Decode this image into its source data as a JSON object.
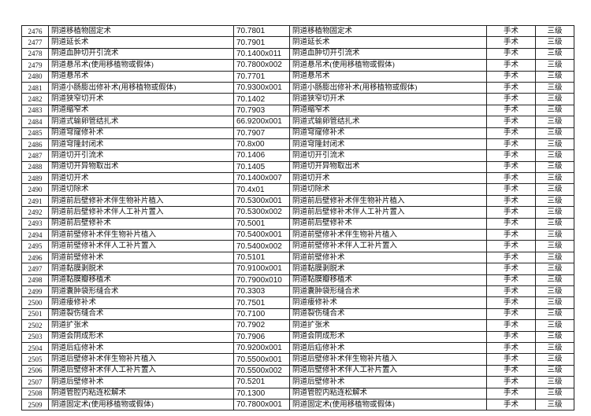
{
  "rows": [
    [
      "2476",
      "阴道移植物固定术",
      "70.7801",
      "阴道移植物固定术",
      "手术",
      "三级"
    ],
    [
      "2477",
      "阴道延长术",
      "70.7901",
      "阴道延长术",
      "手术",
      "三级"
    ],
    [
      "2478",
      "阴道血肿切开引流术",
      "70.1400x011",
      "阴道血肿切开引流术",
      "手术",
      "三级"
    ],
    [
      "2479",
      "阴道悬吊术(使用移植物或假体)",
      "70.7800x002",
      "阴道悬吊术(使用移植物或假体)",
      "手术",
      "三级"
    ],
    [
      "2480",
      "阴道悬吊术",
      "70.7701",
      "阴道悬吊术",
      "手术",
      "三级"
    ],
    [
      "2481",
      "阴道小肠膨出修补术(用移植物或假体)",
      "70.9300x001",
      "阴道小肠膨出修补术(用移植物或假体)",
      "手术",
      "三级"
    ],
    [
      "2482",
      "阴道狭窄切开术",
      "70.1402",
      "阴道狭窄切开术",
      "手术",
      "三级"
    ],
    [
      "2483",
      "阴道缩窄术",
      "70.7903",
      "阴道缩窄术",
      "手术",
      "三级"
    ],
    [
      "2484",
      "阴道式输卵管结扎术",
      "66.9200x001",
      "阴道式输卵管结扎术",
      "手术",
      "三级"
    ],
    [
      "2485",
      "阴道穹窿修补术",
      "70.7907",
      "阴道穹窿修补术",
      "手术",
      "三级"
    ],
    [
      "2486",
      "阴道穹隆封闭术",
      "70.8x00",
      "阴道穹隆封闭术",
      "手术",
      "三级"
    ],
    [
      "2487",
      "阴道切开引流术",
      "70.1406",
      "阴道切开引流术",
      "手术",
      "三级"
    ],
    [
      "2488",
      "阴道切开异物取出术",
      "70.1405",
      "阴道切开异物取出术",
      "手术",
      "三级"
    ],
    [
      "2489",
      "阴道切开术",
      "70.1400x007",
      "阴道切开术",
      "手术",
      "三级"
    ],
    [
      "2490",
      "阴道切除术",
      "70.4x01",
      "阴道切除术",
      "手术",
      "三级"
    ],
    [
      "2491",
      "阴道前后壁修补术伴生物补片植入",
      "70.5300x001",
      "阴道前后壁修补术伴生物补片植入",
      "手术",
      "三级"
    ],
    [
      "2492",
      "阴道前后壁修补术伴人工补片置入",
      "70.5300x002",
      "阴道前后壁修补术伴人工补片置入",
      "手术",
      "三级"
    ],
    [
      "2493",
      "阴道前后壁修补术",
      "70.5001",
      "阴道前后壁修补术",
      "手术",
      "三级"
    ],
    [
      "2494",
      "阴道前壁修补术伴生物补片植入",
      "70.5400x001",
      "阴道前壁修补术伴生物补片植入",
      "手术",
      "三级"
    ],
    [
      "2495",
      "阴道前壁修补术伴人工补片置入",
      "70.5400x002",
      "阴道前壁修补术伴人工补片置入",
      "手术",
      "三级"
    ],
    [
      "2496",
      "阴道前壁修补术",
      "70.5101",
      "阴道前壁修补术",
      "手术",
      "三级"
    ],
    [
      "2497",
      "阴道黏膜剥脱术",
      "70.9100x001",
      "阴道黏膜剥脱术",
      "手术",
      "三级"
    ],
    [
      "2498",
      "阴道黏膜瓣移植术",
      "70.7900x010",
      "阴道黏膜瓣移植术",
      "手术",
      "三级"
    ],
    [
      "2499",
      "阴道囊肿袋形缝合术",
      "70.3303",
      "阴道囊肿袋形缝合术",
      "手术",
      "三级"
    ],
    [
      "2500",
      "阴道瘘修补术",
      "70.7501",
      "阴道瘘修补术",
      "手术",
      "三级"
    ],
    [
      "2501",
      "阴道裂伤缝合术",
      "70.7100",
      "阴道裂伤缝合术",
      "手术",
      "三级"
    ],
    [
      "2502",
      "阴道扩张术",
      "70.7902",
      "阴道扩张术",
      "手术",
      "三级"
    ],
    [
      "2503",
      "阴道会阴成形术",
      "70.7906",
      "阴道会阴成形术",
      "手术",
      "三级"
    ],
    [
      "2504",
      "阴道后疝修补术",
      "70.9200x001",
      "阴道后疝修补术",
      "手术",
      "三级"
    ],
    [
      "2505",
      "阴道后壁修补术伴生物补片植入",
      "70.5500x001",
      "阴道后壁修补术伴生物补片植入",
      "手术",
      "三级"
    ],
    [
      "2506",
      "阴道后壁修补术伴人工补片置入",
      "70.5500x002",
      "阴道后壁修补术伴人工补片置入",
      "手术",
      "三级"
    ],
    [
      "2507",
      "阴道后壁修补术",
      "70.5201",
      "阴道后壁修补术",
      "手术",
      "三级"
    ],
    [
      "2508",
      "阴道管腔内粘连松解术",
      "70.1300",
      "阴道管腔内粘连松解术",
      "手术",
      "三级"
    ],
    [
      "2509",
      "阴道固定术(使用移植物或假体)",
      "70.7800x001",
      "阴道固定术(使用移植物或假体)",
      "手术",
      "三级"
    ]
  ]
}
